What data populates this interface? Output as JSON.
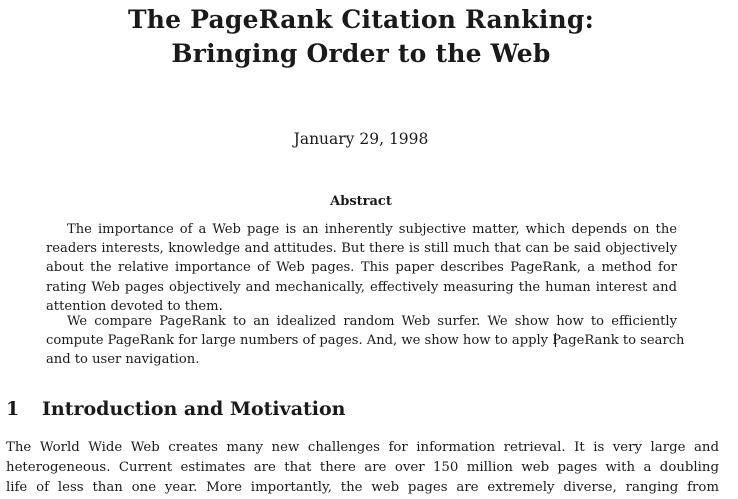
{
  "title": {
    "line1": "The PageRank Citation Ranking:",
    "line2": "Bringing Order to the Web"
  },
  "date": "January 29, 1998",
  "abstract": {
    "heading": "Abstract",
    "paragraph1_lines": [
      "The importance of a Web page is an inherently subjective matter, which depends on the",
      "readers interests, knowledge and attitudes. But there is still much that can be said objectively",
      "about the relative importance of Web pages. This paper describes PageRank, a method for",
      "rating Web pages objectively and mechanically, effectively measuring the human interest and",
      "attention devoted to them."
    ],
    "paragraph2_lines": [
      "We compare PageRank to an idealized random Web surfer. We show how to efficiently",
      "compute PageRank for large numbers of pages. And, we show how to apply PageRank to search",
      "and to user navigation."
    ]
  },
  "section1": {
    "number": "1",
    "title": "Introduction and Motivation",
    "lines": [
      "The World Wide Web creates many new challenges for information retrieval. It is very large and",
      "heterogeneous. Current estimates are that there are over 150 million web pages with a doubling",
      "life of less than one year. More importantly, the web pages are extremely diverse, ranging from"
    ]
  }
}
